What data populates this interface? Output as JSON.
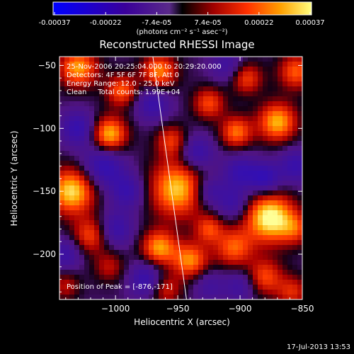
{
  "colorbar": {
    "ticks": [
      "-0.00037",
      "-0.00022",
      "-7.4e-05",
      "7.4e-05",
      "0.00022",
      "0.00037"
    ],
    "unit_label": "(photons cm⁻² s⁻¹ asec⁻²)",
    "range": [
      -0.00037,
      0.00037
    ]
  },
  "chart_data": {
    "type": "heatmap",
    "title": "Reconstructed RHESSI Image",
    "xlabel": "Heliocentric X (arcsec)",
    "ylabel": "Heliocentric Y (arcsec)",
    "xlim": [
      -1045,
      -850
    ],
    "ylim": [
      -236,
      -43
    ],
    "x_ticks": [
      "−1000",
      "−950",
      "−900",
      "−850"
    ],
    "y_ticks": [
      "−50",
      "−100",
      "−150",
      "−200"
    ],
    "x_tick_values": [
      -1000,
      -950,
      -900,
      -850
    ],
    "y_tick_values": [
      -50,
      -100,
      -150,
      -200
    ],
    "annotations": [
      "25-Nov-2006 20:25:04.000 to 20:29:20.000",
      "Detectors: 4F 5F 6F 7F 8F, Att 0",
      "Energy Range: 12.0 - 25.0 keV",
      "Clean     Total counts: 1.99E+04"
    ],
    "peak_label": "Position of Peak = [-876,-171]",
    "peak": [
      -876,
      -171
    ],
    "limb_line": [
      [
        -970,
        -43
      ],
      [
        -943,
        -236
      ]
    ],
    "blobs": [
      {
        "x": -876,
        "y": -171,
        "v": 1.0,
        "s": 14
      },
      {
        "x": -950,
        "y": -148,
        "v": 0.85,
        "s": 16
      },
      {
        "x": -1035,
        "y": -150,
        "v": 0.9,
        "s": 13
      },
      {
        "x": -1030,
        "y": -52,
        "v": 0.75,
        "s": 11
      },
      {
        "x": -965,
        "y": -55,
        "v": 0.7,
        "s": 10
      },
      {
        "x": -1005,
        "y": -105,
        "v": 0.85,
        "s": 10
      },
      {
        "x": -995,
        "y": -70,
        "v": 0.6,
        "s": 9
      },
      {
        "x": -870,
        "y": -95,
        "v": 0.8,
        "s": 11
      },
      {
        "x": -903,
        "y": -103,
        "v": 0.65,
        "s": 9
      },
      {
        "x": -925,
        "y": -80,
        "v": 0.55,
        "s": 9
      },
      {
        "x": -895,
        "y": -60,
        "v": 0.55,
        "s": 9
      },
      {
        "x": -855,
        "y": -55,
        "v": 0.6,
        "s": 10
      },
      {
        "x": -955,
        "y": -110,
        "v": 0.5,
        "s": 9
      },
      {
        "x": -1020,
        "y": -185,
        "v": 0.55,
        "s": 10
      },
      {
        "x": -1005,
        "y": -210,
        "v": 0.35,
        "s": 9
      },
      {
        "x": -965,
        "y": -195,
        "v": 0.75,
        "s": 10
      },
      {
        "x": -940,
        "y": -205,
        "v": 0.7,
        "s": 10
      },
      {
        "x": -905,
        "y": -195,
        "v": 0.6,
        "s": 11
      },
      {
        "x": -925,
        "y": -180,
        "v": 0.5,
        "s": 8
      },
      {
        "x": -880,
        "y": -218,
        "v": 0.55,
        "s": 10
      },
      {
        "x": -858,
        "y": -230,
        "v": 0.45,
        "s": 9
      },
      {
        "x": -960,
        "y": -228,
        "v": 0.45,
        "s": 9
      },
      {
        "x": -1040,
        "y": -225,
        "v": 0.35,
        "s": 8
      },
      {
        "x": -855,
        "y": -180,
        "v": 0.4,
        "s": 9
      },
      {
        "x": -1010,
        "y": -130,
        "v": -0.55,
        "s": 12
      },
      {
        "x": -990,
        "y": -150,
        "v": -0.45,
        "s": 10
      },
      {
        "x": -1030,
        "y": -100,
        "v": -0.5,
        "s": 10
      },
      {
        "x": -970,
        "y": -80,
        "v": -0.45,
        "s": 10
      },
      {
        "x": -935,
        "y": -120,
        "v": -0.5,
        "s": 10
      },
      {
        "x": -925,
        "y": -150,
        "v": -0.45,
        "s": 9
      },
      {
        "x": -900,
        "y": -135,
        "v": -0.45,
        "s": 10
      },
      {
        "x": -905,
        "y": -160,
        "v": -0.4,
        "s": 9
      },
      {
        "x": -910,
        "y": -50,
        "v": -0.35,
        "s": 10
      },
      {
        "x": -880,
        "y": -140,
        "v": -0.55,
        "s": 9
      },
      {
        "x": -1000,
        "y": -180,
        "v": -0.45,
        "s": 10
      },
      {
        "x": -975,
        "y": -220,
        "v": -0.5,
        "s": 10
      },
      {
        "x": -900,
        "y": -225,
        "v": -0.35,
        "s": 9
      },
      {
        "x": -855,
        "y": -130,
        "v": -0.45,
        "s": 10
      },
      {
        "x": -1040,
        "y": -200,
        "v": -0.4,
        "s": 9
      },
      {
        "x": -925,
        "y": -225,
        "v": -0.3,
        "s": 9
      }
    ]
  },
  "footer": {
    "timestamp": "17-Jul-2013 13:53"
  }
}
